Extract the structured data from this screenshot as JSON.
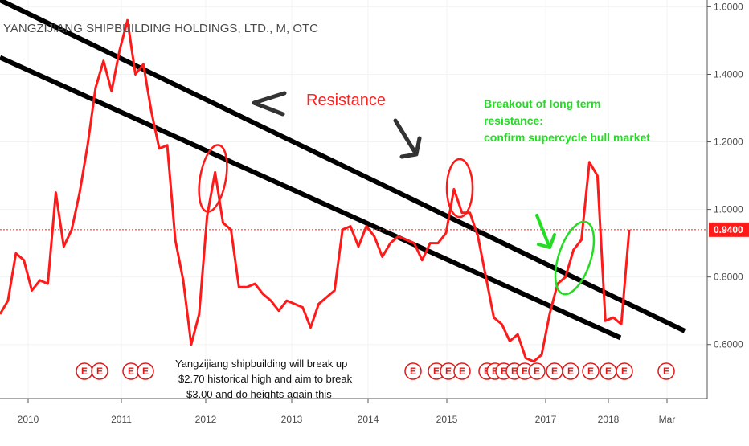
{
  "header": {
    "title": "YANGZIJIANG SHIPBUILDING HOLDINGS, LTD., M, OTC"
  },
  "price_axis": {
    "current_price_label": "0.9400"
  },
  "annotations": {
    "resistance": "Resistance",
    "breakout_lines": [
      "Breakout of long term",
      "resistance:",
      "confirm supercycle bull market"
    ],
    "note_lines": [
      "Yangzijiang shipbuilding will break up",
      "$2.70 historical high and aim to break",
      "$3.00 and do heights again this"
    ]
  },
  "earnings_marker_label": "E",
  "colors": {
    "price_line": "#ff1a1a",
    "trendline": "#000000",
    "current_price_tag": "#ff1a1a",
    "green_annotation": "#22dd22",
    "red_annotation": "#ff2222"
  },
  "chart_data": {
    "type": "line",
    "title": "YANGZIJIANG SHIPBUILDING HOLDINGS, LTD., M, OTC",
    "ylim": [
      0.44,
      1.62
    ],
    "y_ticks": [
      "1.6000",
      "1.4000",
      "1.2000",
      "1.0000",
      "0.8000",
      "0.6000"
    ],
    "x_ticks": [
      "2010",
      "2011",
      "2012",
      "2013",
      "2014",
      "2015",
      "2017",
      "2018",
      "Mar"
    ],
    "current_price": 0.94,
    "series": [
      {
        "values": [
          0.69,
          0.73,
          0.87,
          0.85,
          0.76,
          0.79,
          0.78,
          1.05,
          0.89,
          0.94,
          1.05,
          1.19,
          1.36,
          1.44,
          1.35,
          1.47,
          1.56,
          1.4,
          1.43,
          1.29,
          1.18,
          1.19,
          0.91,
          0.79,
          0.6,
          0.69,
          0.98,
          1.11,
          0.96,
          0.94,
          0.77,
          0.77,
          0.78,
          0.75,
          0.73,
          0.7,
          0.73,
          0.72,
          0.71,
          0.65,
          0.72,
          0.74,
          0.76,
          0.94,
          0.95,
          0.89,
          0.95,
          0.92,
          0.86,
          0.9,
          0.92,
          0.91,
          0.9,
          0.85,
          0.9,
          0.9,
          0.93,
          1.06,
          0.99,
          0.99,
          0.92,
          0.8,
          0.68,
          0.66,
          0.61,
          0.63,
          0.56,
          0.55,
          0.57,
          0.69,
          0.78,
          0.8,
          0.88,
          0.91,
          1.14,
          1.1,
          0.67,
          0.68,
          0.66,
          0.94
        ]
      }
    ],
    "trendlines": [
      {
        "from": [
          0,
          1.62
        ],
        "to": [
          81,
          0.64
        ]
      },
      {
        "from": [
          0,
          1.45
        ],
        "to": [
          78,
          0.62
        ]
      }
    ],
    "earnings_markers": 20
  }
}
